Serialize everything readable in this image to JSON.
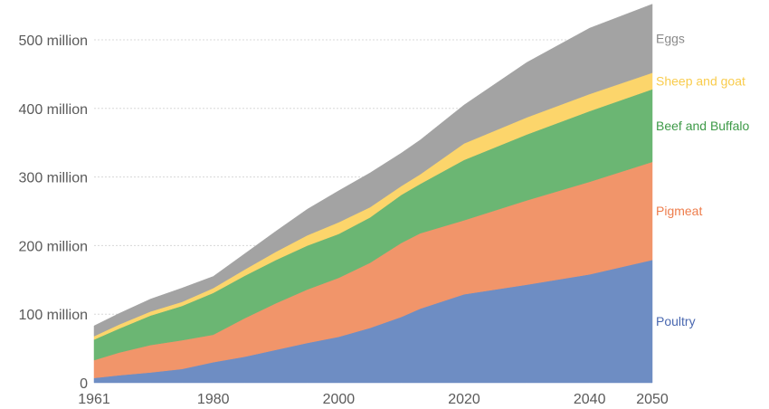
{
  "chart_data": {
    "type": "area",
    "stacked": true,
    "title": "",
    "xlabel": "",
    "ylabel": "",
    "x": [
      1961,
      1965,
      1970,
      1975,
      1980,
      1985,
      1990,
      1995,
      2000,
      2005,
      2010,
      2013,
      2020,
      2030,
      2040,
      2050
    ],
    "xlim": [
      1961,
      2050
    ],
    "ylim": [
      0,
      550000000
    ],
    "x_ticks": [
      {
        "value": 1961,
        "label": "1961"
      },
      {
        "value": 1980,
        "label": "1980"
      },
      {
        "value": 2000,
        "label": "2000"
      },
      {
        "value": 2020,
        "label": "2020"
      },
      {
        "value": 2040,
        "label": "2040"
      },
      {
        "value": 2050,
        "label": "2050"
      }
    ],
    "y_ticks": [
      {
        "value": 0,
        "label": "0"
      },
      {
        "value": 100000000,
        "label": "100 million"
      },
      {
        "value": 200000000,
        "label": "200 million"
      },
      {
        "value": 300000000,
        "label": "300 million"
      },
      {
        "value": 400000000,
        "label": "400 million"
      },
      {
        "value": 500000000,
        "label": "500 million"
      }
    ],
    "grid": true,
    "legend": "right (inline labels)",
    "series": [
      {
        "name": "Poultry",
        "color": "#6e8dc3",
        "values": [
          7,
          11,
          15,
          20,
          30,
          38,
          48,
          58,
          67,
          80,
          96,
          108,
          129,
          143,
          158,
          179
        ]
      },
      {
        "name": "Pigmeat",
        "color": "#f1956a",
        "values": [
          26,
          33,
          40,
          42,
          40,
          56,
          68,
          78,
          86,
          95,
          108,
          110,
          108,
          123,
          135,
          143
        ]
      },
      {
        "name": "Beef and Buffalo",
        "color": "#6bb673",
        "values": [
          30,
          35,
          43,
          50,
          61,
          62,
          63,
          64,
          64,
          66,
          70,
          72,
          88,
          96,
          103,
          106
        ]
      },
      {
        "name": "Sheep and goat",
        "color": "#fcd56b",
        "values": [
          5,
          6,
          6,
          6,
          7,
          9,
          12,
          15,
          17,
          15,
          13,
          14,
          24,
          25,
          25,
          24
        ]
      },
      {
        "name": "Eggs",
        "color": "#a3a3a3",
        "values": [
          15,
          16,
          18,
          20,
          17,
          23,
          30,
          38,
          46,
          50,
          48,
          50,
          56,
          80,
          96,
          100
        ]
      }
    ],
    "value_unit": "million"
  }
}
